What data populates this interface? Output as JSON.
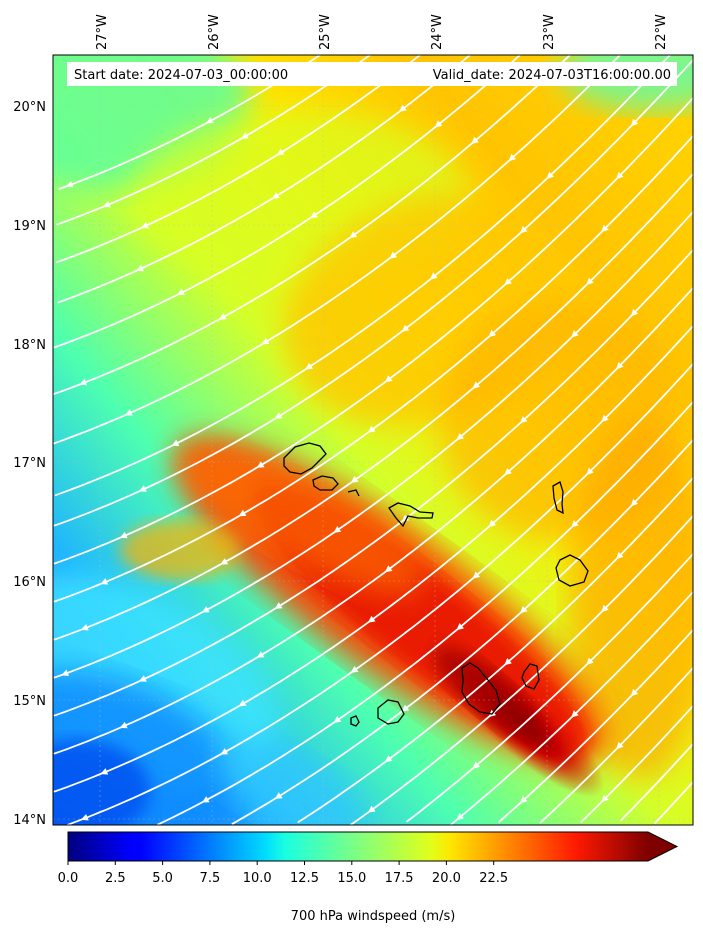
{
  "map": {
    "start_date_label": "Start date: 2024-07-03_00:00:00",
    "valid_date_label": "Valid_date: 2024-07-03T16:00:00.00",
    "lon_ticks": [
      "27°W",
      "26°W",
      "25°W",
      "24°W",
      "23°W",
      "22°W"
    ],
    "lat_ticks": [
      "20°N",
      "19°N",
      "18°N",
      "17°N",
      "16°N",
      "15°N",
      "14°N"
    ],
    "field": "700 hPa windspeed",
    "islands": [
      "Santo Antão",
      "São Vicente",
      "Santa Luzia",
      "São Nicolau",
      "Sal",
      "Boa Vista",
      "Maio",
      "Santiago",
      "Fogo",
      "Brava"
    ]
  },
  "colorbar": {
    "title": "700 hPa windspeed (m/s)",
    "ticks": [
      "0.0",
      "2.5",
      "5.0",
      "7.5",
      "10.0",
      "12.5",
      "15.0",
      "17.5",
      "20.0",
      "22.5"
    ],
    "colormap": "jet",
    "extend": "max"
  },
  "colors": {
    "streamline": "#ffffff",
    "coastline": "#000000",
    "grid": "#bbbbbb"
  }
}
